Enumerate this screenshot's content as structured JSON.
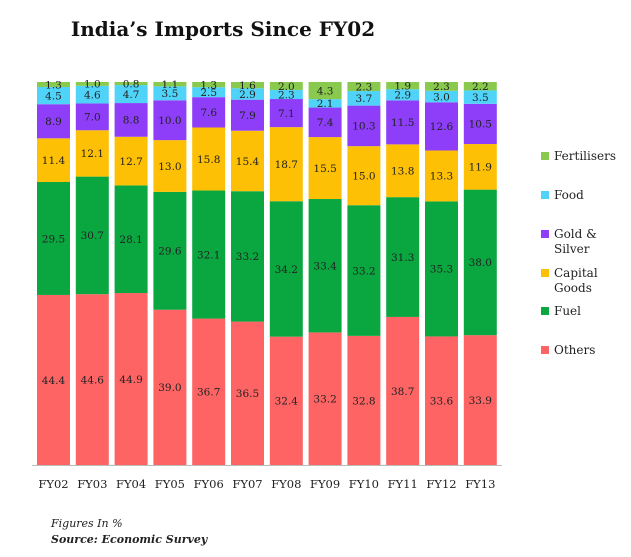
{
  "chart_data": {
    "type": "bar",
    "stacked": true,
    "normalized_percent": true,
    "title": "India’s Imports Since FY02",
    "categories": [
      "FY02",
      "FY03",
      "FY04",
      "FY05",
      "FY06",
      "FY07",
      "FY08",
      "FY09",
      "FY10",
      "FY11",
      "FY12",
      "FY13"
    ],
    "series": [
      {
        "name": "Others",
        "color": "#fe6464",
        "values": [
          44.4,
          44.6,
          44.9,
          39.0,
          36.7,
          36.5,
          32.4,
          33.2,
          32.8,
          38.7,
          33.6,
          33.9
        ]
      },
      {
        "name": "Fuel",
        "color": "#0aa640",
        "values": [
          29.5,
          30.7,
          28.1,
          29.6,
          32.1,
          33.2,
          34.2,
          33.4,
          33.2,
          31.3,
          35.3,
          38.0
        ]
      },
      {
        "name": "Capital Goods",
        "color": "#fec004",
        "values": [
          11.4,
          12.1,
          12.7,
          13.0,
          15.8,
          15.4,
          18.7,
          15.5,
          15.0,
          13.8,
          13.3,
          11.9
        ]
      },
      {
        "name": "Gold & Silver",
        "color": "#8e3ef8",
        "values": [
          8.9,
          7.0,
          8.8,
          10.0,
          7.6,
          7.9,
          7.1,
          7.4,
          10.3,
          11.5,
          12.6,
          10.5
        ]
      },
      {
        "name": "Food",
        "color": "#4fd3f9",
        "values": [
          4.5,
          4.6,
          4.7,
          3.5,
          2.5,
          2.9,
          2.3,
          2.1,
          3.7,
          2.9,
          3.0,
          3.5
        ]
      },
      {
        "name": "Fertilisers",
        "color": "#89c94d",
        "values": [
          1.3,
          1.0,
          0.8,
          1.1,
          1.3,
          1.6,
          2.0,
          4.3,
          2.3,
          1.9,
          2.3,
          2.2
        ]
      }
    ],
    "legend_order": [
      "Fertilisers",
      "Food",
      "Gold &\nSilver",
      "Capital\nGoods",
      "Fuel",
      "Others"
    ],
    "legend_position": "right",
    "xlabel": "",
    "ylabel": "",
    "grid": false
  },
  "notes": {
    "units": "Figures In %",
    "source": "Source: Economic Survey"
  }
}
